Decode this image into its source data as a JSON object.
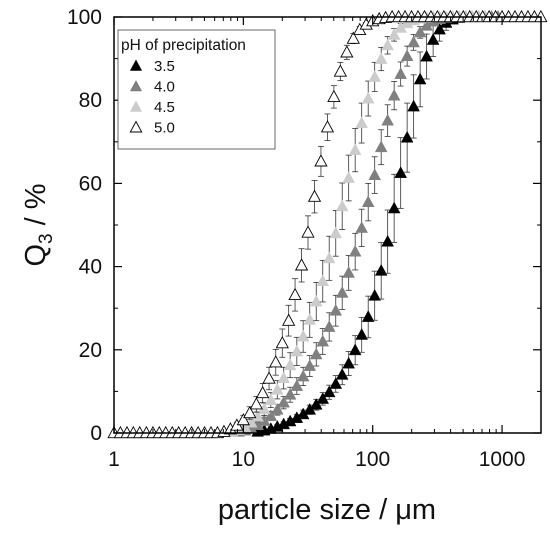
{
  "chart_data": {
    "type": "scatter",
    "xscale": "log",
    "xlim": [
      1,
      2000
    ],
    "ylim": [
      0,
      100
    ],
    "xlabel": "particle size / μm",
    "ylabel_main": "Q",
    "ylabel_sub": "3",
    "ylabel_rest": " / %",
    "x_ticks": [
      1,
      10,
      100,
      1000
    ],
    "x_tick_labels": [
      "1",
      "10",
      "100",
      "1000"
    ],
    "y_ticks": [
      0,
      20,
      40,
      60,
      80,
      100
    ],
    "y_tick_labels": [
      "0",
      "20",
      "40",
      "60",
      "80",
      "100"
    ],
    "grid": false,
    "legend": {
      "title": "pH of precipitation",
      "position": "top-left"
    },
    "series": [
      {
        "name": "3.5",
        "marker": "triangle-filled",
        "color": "#000000",
        "x": [
          12.9,
          14.5,
          16.3,
          18.3,
          20.5,
          23.0,
          25.9,
          29.0,
          32.6,
          36.6,
          41.1,
          46.1,
          51.8,
          58.1,
          65.2,
          73.2,
          82.2,
          92.3,
          103.6,
          116.3,
          130.5,
          146.5,
          164.5,
          184.6,
          207.2,
          232.6,
          261.1,
          293.1,
          329.0,
          369.3,
          414.6,
          465.4,
          522.4,
          586.4,
          658.2,
          738.9,
          829.4,
          931.0
        ],
        "y": [
          0.3,
          0.6,
          1.0,
          1.5,
          2.1,
          2.8,
          3.6,
          4.5,
          5.6,
          6.8,
          8.2,
          9.8,
          11.8,
          14.0,
          16.7,
          19.9,
          23.6,
          27.9,
          33.0,
          39.0,
          46.0,
          54.0,
          62.5,
          71.0,
          78.5,
          85.0,
          90.5,
          94.5,
          97.0,
          98.6,
          99.4,
          99.8,
          100.0,
          100.0,
          100.0,
          100.0,
          100.0,
          100.0
        ],
        "err": [
          0.2,
          0.3,
          0.4,
          0.5,
          0.6,
          0.7,
          0.8,
          1.0,
          1.1,
          1.3,
          1.5,
          1.7,
          2.0,
          2.4,
          2.9,
          3.5,
          4.2,
          5.0,
          5.9,
          6.8,
          7.6,
          8.2,
          8.5,
          8.3,
          7.6,
          6.6,
          5.4,
          4.0,
          2.8,
          1.8,
          1.0,
          0.5,
          0.3,
          0.2,
          0.1,
          0.1,
          0.1,
          0.1
        ]
      },
      {
        "name": "4.0",
        "marker": "triangle-filled",
        "color": "#808080",
        "x": [
          9.2,
          10.3,
          11.5,
          12.9,
          14.5,
          16.3,
          18.3,
          20.5,
          23.0,
          25.9,
          29.0,
          32.6,
          36.6,
          41.1,
          46.1,
          51.8,
          58.1,
          65.2,
          73.2,
          82.2,
          92.3,
          103.6,
          116.3,
          130.5,
          146.5,
          164.5,
          184.6,
          207.2,
          232.6,
          261.1,
          293.1,
          329.0,
          369.3,
          414.6,
          465.4,
          522.4,
          586.4,
          658.2,
          738.9,
          829.4,
          931.0
        ],
        "y": [
          0.3,
          0.6,
          1.1,
          1.9,
          2.9,
          4.1,
          5.6,
          7.3,
          9.2,
          11.3,
          13.6,
          16.1,
          18.9,
          22.0,
          25.5,
          29.4,
          33.7,
          38.5,
          43.6,
          49.3,
          55.5,
          62.0,
          68.7,
          75.1,
          81.1,
          86.3,
          90.6,
          93.9,
          96.3,
          97.9,
          98.9,
          99.5,
          99.8,
          100.0,
          100.0,
          100.0,
          100.0,
          100.0,
          100.0,
          100.0,
          100.0
        ],
        "err": [
          0.2,
          0.3,
          0.5,
          0.7,
          0.9,
          1.1,
          1.3,
          1.5,
          1.8,
          2.0,
          2.2,
          2.5,
          2.8,
          3.1,
          3.4,
          3.7,
          4.0,
          4.2,
          4.4,
          4.5,
          4.5,
          4.4,
          4.2,
          3.8,
          3.4,
          2.9,
          2.4,
          1.9,
          1.4,
          1.0,
          0.7,
          0.4,
          0.2,
          0.1,
          0.1,
          0.1,
          0.1,
          0.1,
          0.1,
          0.1,
          0.1
        ]
      },
      {
        "name": "4.5",
        "marker": "triangle-filled",
        "color": "#cccccc",
        "x": [
          8.2,
          9.2,
          10.3,
          11.5,
          12.9,
          14.5,
          16.3,
          18.3,
          20.5,
          23.0,
          25.9,
          29.0,
          32.6,
          36.6,
          41.1,
          46.1,
          51.8,
          58.1,
          65.2,
          73.2,
          82.2,
          92.3,
          103.6,
          116.3,
          130.5,
          146.5,
          164.5,
          184.6,
          207.2,
          232.6,
          261.1,
          293.1,
          329.0,
          369.3,
          414.6,
          465.4,
          522.4,
          586.4,
          658.2,
          738.9
        ],
        "y": [
          0.3,
          0.7,
          1.4,
          2.5,
          3.9,
          5.7,
          7.9,
          10.4,
          13.2,
          16.3,
          19.6,
          23.2,
          27.2,
          31.6,
          36.5,
          42.0,
          48.0,
          54.5,
          61.3,
          68.0,
          74.5,
          80.4,
          85.6,
          89.9,
          93.2,
          95.7,
          97.4,
          98.5,
          99.2,
          99.6,
          99.8,
          100.0,
          100.0,
          100.0,
          100.0,
          100.0,
          100.0,
          100.0,
          100.0,
          100.0
        ],
        "err": [
          0.2,
          0.4,
          0.6,
          0.9,
          1.2,
          1.5,
          1.8,
          2.2,
          2.6,
          3.0,
          3.4,
          3.8,
          4.2,
          4.6,
          5.0,
          5.3,
          5.5,
          5.6,
          5.5,
          5.2,
          4.8,
          4.2,
          3.5,
          2.8,
          2.1,
          1.5,
          1.0,
          0.7,
          0.4,
          0.2,
          0.1,
          0.1,
          0.1,
          0.1,
          0.1,
          0.1,
          0.1,
          0.1,
          0.1,
          0.1
        ]
      },
      {
        "name": "5.0",
        "marker": "triangle-open",
        "color": "#000000",
        "x": [
          1.0,
          1.12,
          1.26,
          1.41,
          1.58,
          1.78,
          2.0,
          2.24,
          2.51,
          2.82,
          3.16,
          3.55,
          3.98,
          4.47,
          5.01,
          5.62,
          6.31,
          7.08,
          7.94,
          8.91,
          10.0,
          11.2,
          12.6,
          14.1,
          15.8,
          17.8,
          20.0,
          22.4,
          25.1,
          28.2,
          31.6,
          35.5,
          39.8,
          44.7,
          50.1,
          56.2,
          63.1,
          70.8,
          79.4,
          89.1,
          100.0,
          112.2,
          125.9,
          141.3,
          158.5,
          177.8,
          199.5,
          223.9,
          251.2,
          281.8,
          316.2,
          354.8,
          398.1,
          446.7,
          501.2,
          562.3,
          631.0,
          707.9,
          794.3,
          891.3,
          1000.0,
          1122.0,
          1258.9,
          1412.5,
          1584.9,
          1778.3,
          1995.3
        ],
        "y": [
          0.0,
          0.0,
          0.0,
          0.0,
          0.0,
          0.0,
          0.0,
          0.0,
          0.0,
          0.0,
          0.0,
          0.0,
          0.0,
          0.0,
          0.0,
          0.0,
          0.0,
          0.3,
          0.9,
          1.8,
          3.1,
          4.8,
          6.9,
          9.6,
          13.1,
          17.0,
          21.6,
          27.0,
          33.2,
          40.3,
          48.2,
          56.8,
          65.3,
          73.5,
          80.8,
          86.9,
          91.5,
          94.8,
          96.9,
          98.2,
          99.0,
          99.5,
          99.8,
          100.0,
          100.0,
          100.0,
          100.0,
          100.0,
          100.0,
          100.0,
          100.0,
          100.0,
          100.0,
          100.0,
          100.0,
          100.0,
          100.0,
          100.0,
          100.0,
          100.0,
          100.0,
          100.0,
          100.0,
          100.0,
          100.0,
          100.0,
          100.0
        ],
        "err": [
          0,
          0,
          0,
          0,
          0,
          0,
          0,
          0,
          0,
          0,
          0,
          0,
          0,
          0,
          0,
          0,
          0,
          0.2,
          0.5,
          0.8,
          1.1,
          1.5,
          1.9,
          2.3,
          2.7,
          3.1,
          3.4,
          3.7,
          3.9,
          4.0,
          4.0,
          3.9,
          3.6,
          3.2,
          2.7,
          2.2,
          1.7,
          1.2,
          0.8,
          0.5,
          0.3,
          0.2,
          0.1,
          0.1,
          0,
          0,
          0,
          0,
          0,
          0,
          0,
          0,
          0,
          0,
          0,
          0,
          0,
          0,
          0,
          0,
          0,
          0,
          0,
          0,
          0,
          0,
          0
        ]
      }
    ]
  }
}
